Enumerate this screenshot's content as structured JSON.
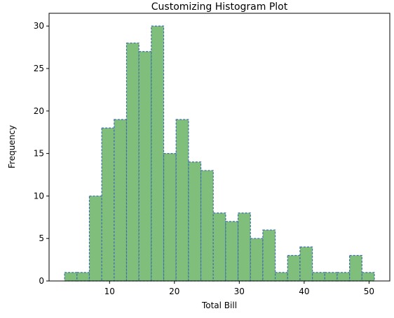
{
  "chart_data": {
    "type": "bar",
    "title": "Customizing Histogram Plot",
    "xlabel": "Total Bill",
    "ylabel": "Frequency",
    "bin_start": 3.07,
    "bin_width": 1.91,
    "values": [
      1,
      1,
      10,
      18,
      19,
      28,
      27,
      30,
      15,
      19,
      14,
      13,
      8,
      7,
      8,
      5,
      6,
      1,
      3,
      4,
      1,
      1,
      1,
      3,
      1
    ],
    "xlim": [
      0.68,
      53.2
    ],
    "ylim": [
      0,
      31.5
    ],
    "xticks": [
      10,
      20,
      30,
      40,
      50
    ],
    "yticks": [
      0,
      5,
      10,
      15,
      20,
      25,
      30
    ],
    "grid": false,
    "colors": {
      "bar_fill": "#7fbf7b",
      "bar_edge": "#3f6fa8"
    }
  }
}
